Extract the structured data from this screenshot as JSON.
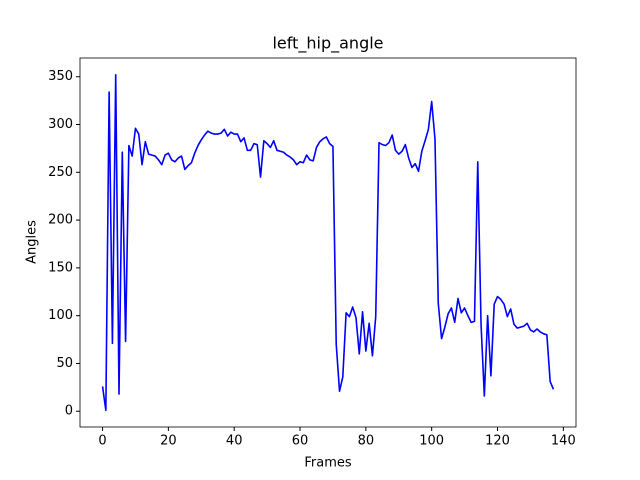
{
  "chart_data": {
    "type": "line",
    "title": "left_hip_angle",
    "x_label": "Frames",
    "y_label": "Angles",
    "x": [
      0,
      1,
      2,
      3,
      4,
      5,
      6,
      7,
      8,
      9,
      10,
      11,
      12,
      13,
      14,
      15,
      16,
      17,
      18,
      19,
      20,
      21,
      22,
      23,
      24,
      25,
      26,
      27,
      28,
      29,
      30,
      31,
      32,
      33,
      34,
      35,
      36,
      37,
      38,
      39,
      40,
      41,
      42,
      43,
      44,
      45,
      46,
      47,
      48,
      49,
      50,
      51,
      52,
      53,
      54,
      55,
      56,
      57,
      58,
      59,
      60,
      61,
      62,
      63,
      64,
      65,
      66,
      67,
      68,
      69,
      70,
      71,
      72,
      73,
      74,
      75,
      76,
      77,
      78,
      79,
      80,
      81,
      82,
      83,
      84,
      85,
      86,
      87,
      88,
      89,
      90,
      91,
      92,
      93,
      94,
      95,
      96,
      97,
      98,
      99,
      100,
      101,
      102,
      103,
      104,
      105,
      106,
      107,
      108,
      109,
      110,
      111,
      112,
      113,
      114,
      115,
      116,
      117,
      118,
      119,
      120,
      121,
      122,
      123,
      124,
      125,
      126,
      127,
      128,
      129,
      130,
      131,
      132,
      133,
      134,
      135,
      136,
      137
    ],
    "series": [
      {
        "name": "left_hip_angle",
        "color": "#0000ff",
        "values": [
          26,
          1,
          334,
          71,
          352,
          18,
          271,
          73,
          278,
          267,
          296,
          290,
          258,
          282,
          269,
          268,
          267,
          263,
          258,
          268,
          270,
          263,
          261,
          265,
          267,
          253,
          257,
          260,
          270,
          278,
          284,
          289,
          293,
          291,
          290,
          290,
          291,
          295,
          288,
          292,
          290,
          290,
          282,
          286,
          273,
          273,
          280,
          279,
          245,
          283,
          280,
          276,
          283,
          273,
          272,
          271,
          268,
          266,
          263,
          258,
          261,
          260,
          268,
          263,
          262,
          276,
          282,
          285,
          287,
          280,
          277,
          70,
          21,
          36,
          103,
          99,
          109,
          98,
          60,
          104,
          63,
          92,
          58,
          99,
          281,
          279,
          278,
          281,
          289,
          273,
          269,
          272,
          279,
          265,
          255,
          259,
          251,
          272,
          283,
          295,
          324,
          285,
          113,
          76,
          88,
          102,
          108,
          93,
          118,
          103,
          108,
          100,
          93,
          94,
          261,
          91,
          16,
          100,
          37,
          112,
          120,
          117,
          112,
          99,
          107,
          91,
          87,
          88,
          89,
          92,
          85,
          83,
          86,
          83,
          81,
          80,
          31,
          23
        ]
      }
    ],
    "xlim": [
      -6.85,
      143.85
    ],
    "ylim": [
      -16.5,
      369.6
    ],
    "xticks": [
      0,
      20,
      40,
      60,
      80,
      100,
      120,
      140
    ],
    "yticks": [
      0,
      50,
      100,
      150,
      200,
      250,
      300,
      350
    ],
    "grid": false
  }
}
